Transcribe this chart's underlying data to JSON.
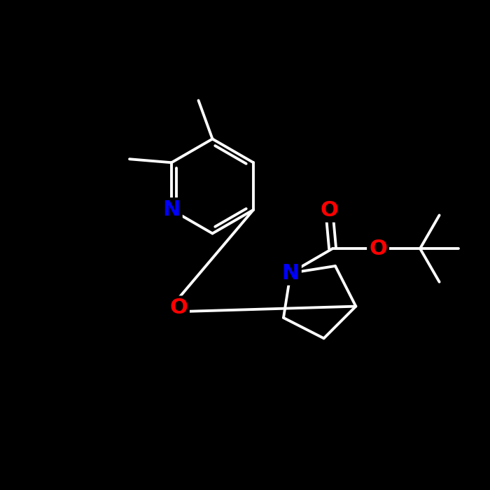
{
  "bg_color": "#000000",
  "white": "#ffffff",
  "blue": "#0000ff",
  "red": "#ff0000",
  "lw": 2.8,
  "fontsize": 22,
  "xlim": [
    0,
    14
  ],
  "ylim": [
    0,
    14
  ],
  "figsize": [
    7,
    7
  ],
  "dpi": 100
}
